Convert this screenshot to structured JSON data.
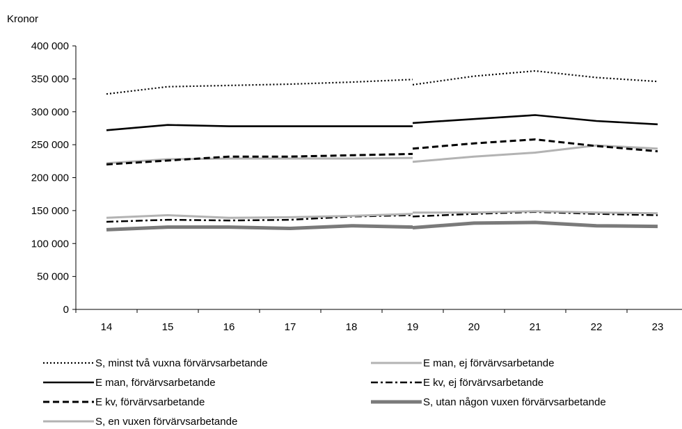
{
  "chart_data": {
    "type": "line",
    "ylabel": "Kronor",
    "ylim": [
      0,
      400000
    ],
    "y_ticks": [
      {
        "value": 0,
        "label": "0"
      },
      {
        "value": 50000,
        "label": "50 000"
      },
      {
        "value": 100000,
        "label": "100 000"
      },
      {
        "value": 150000,
        "label": "150 000"
      },
      {
        "value": 200000,
        "label": "200 000"
      },
      {
        "value": 250000,
        "label": "250 000"
      },
      {
        "value": 300000,
        "label": "300 000"
      },
      {
        "value": 350000,
        "label": "350 000"
      },
      {
        "value": 400000,
        "label": "400 000"
      }
    ],
    "categories": [
      "14",
      "15",
      "16",
      "17",
      "18",
      "19",
      "20",
      "21",
      "22",
      "23"
    ],
    "break_after": "19",
    "grid": false,
    "legend_position": "bottom",
    "series": [
      {
        "name": "S, minst två vuxna förvärvsarbetande",
        "style": "dotted",
        "color": "#000000",
        "segments": [
          [
            327000,
            338000,
            340000,
            342000,
            345000,
            349000
          ],
          [
            341000,
            354000,
            362000,
            352000,
            346000
          ]
        ]
      },
      {
        "name": "E man, ej förvärvsarbetande",
        "style": "solid",
        "color": "#b3b3b3",
        "segments": [
          [
            222000,
            228000,
            229000,
            229000,
            229000,
            230000
          ],
          [
            224000,
            232000,
            238000,
            249000,
            244000
          ]
        ]
      },
      {
        "name": "E man, förvärvsarbetande",
        "style": "solid",
        "color": "#000000",
        "segments": [
          [
            272000,
            280000,
            278000,
            278000,
            278000,
            278000
          ],
          [
            283000,
            289000,
            295000,
            286000,
            281000
          ]
        ]
      },
      {
        "name": "E kv, ej förvärvsarbetande",
        "style": "dashdot",
        "color": "#000000",
        "segments": [
          [
            133000,
            136000,
            135000,
            136000,
            141000,
            143000
          ],
          [
            141000,
            145000,
            148000,
            145000,
            143000
          ]
        ]
      },
      {
        "name": "E kv, förvärvsarbetande",
        "style": "dashed",
        "color": "#000000",
        "segments": [
          [
            220000,
            226000,
            232000,
            232000,
            234000,
            236000
          ],
          [
            244000,
            252000,
            258000,
            248000,
            240000
          ]
        ]
      },
      {
        "name": "S, utan någon vuxen förvärvsarbetande",
        "style": "thick",
        "color": "#7a7a7a",
        "segments": [
          [
            121000,
            125000,
            125000,
            123000,
            127000,
            125000
          ],
          [
            124000,
            131000,
            132000,
            127000,
            126000
          ]
        ]
      },
      {
        "name": "S, en vuxen förvärvsarbetande",
        "style": "solid",
        "color": "#b3b3b3",
        "segments": [
          [
            139000,
            143000,
            139000,
            140000,
            142000,
            145000
          ],
          [
            147000,
            147000,
            149000,
            147000,
            146000
          ]
        ]
      }
    ]
  }
}
